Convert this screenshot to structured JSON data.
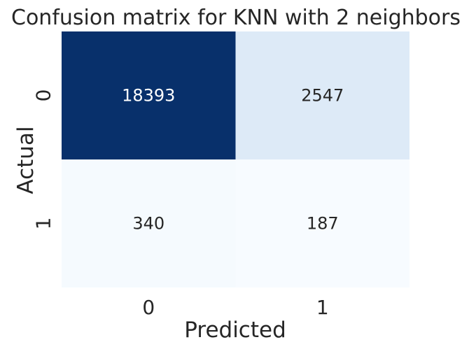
{
  "chart_data": {
    "type": "heatmap",
    "title": "Confusion matrix for KNN with 2 neighbors",
    "xlabel": "Predicted",
    "ylabel": "Actual",
    "x_categories": [
      "0",
      "1"
    ],
    "y_categories": [
      "0",
      "1"
    ],
    "values": [
      [
        18393,
        2547
      ],
      [
        340,
        187
      ]
    ],
    "colormap": "Blues",
    "colorbar": false,
    "low_color": "#f7fbff",
    "high_color": "#08306b",
    "annotation_color_dark_cells": "#ffffff",
    "annotation_color_light_cells": "#262626"
  }
}
